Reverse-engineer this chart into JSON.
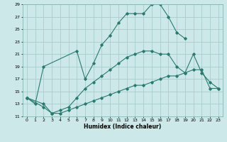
{
  "xlabel": "Humidex (Indice chaleur)",
  "bg_color": "#cce8e8",
  "grid_color": "#aacccc",
  "line_color": "#2a7a70",
  "xlim_min": -0.5,
  "xlim_max": 23.5,
  "ylim_min": 11,
  "ylim_max": 29,
  "yticks": [
    11,
    13,
    15,
    17,
    19,
    21,
    23,
    25,
    27,
    29
  ],
  "xticks": [
    0,
    1,
    2,
    3,
    4,
    5,
    6,
    7,
    8,
    9,
    10,
    11,
    12,
    13,
    14,
    15,
    16,
    17,
    18,
    19,
    20,
    21,
    22,
    23
  ],
  "curve1_x": [
    0,
    1,
    2,
    6,
    7,
    8,
    9,
    10,
    11,
    12,
    13,
    14,
    15,
    16,
    17,
    18,
    19
  ],
  "curve1_y": [
    14.0,
    13.0,
    19.0,
    21.5,
    17.0,
    19.5,
    22.5,
    24.0,
    26.0,
    27.5,
    27.5,
    27.5,
    29.0,
    29.0,
    27.0,
    24.5,
    23.5
  ],
  "curve2_x": [
    0,
    2,
    3,
    4,
    5,
    6,
    7,
    8,
    9,
    10,
    11,
    12,
    13,
    14,
    15,
    16,
    17,
    18,
    19,
    20,
    21,
    22,
    23
  ],
  "curve2_y": [
    14.0,
    13.0,
    11.5,
    12.0,
    12.5,
    14.0,
    15.5,
    16.5,
    17.5,
    18.5,
    19.5,
    20.5,
    21.0,
    21.5,
    21.5,
    21.0,
    21.0,
    19.0,
    18.0,
    21.0,
    18.0,
    16.5,
    15.5
  ],
  "curve3_x": [
    0,
    2,
    3,
    4,
    5,
    6,
    7,
    8,
    9,
    10,
    11,
    12,
    13,
    14,
    15,
    16,
    17,
    18,
    19,
    20,
    21,
    22,
    23
  ],
  "curve3_y": [
    14.0,
    12.5,
    11.5,
    11.5,
    12.0,
    12.5,
    13.0,
    13.5,
    14.0,
    14.5,
    15.0,
    15.5,
    16.0,
    16.0,
    16.5,
    17.0,
    17.5,
    17.5,
    18.0,
    18.5,
    18.5,
    15.5,
    15.5
  ]
}
